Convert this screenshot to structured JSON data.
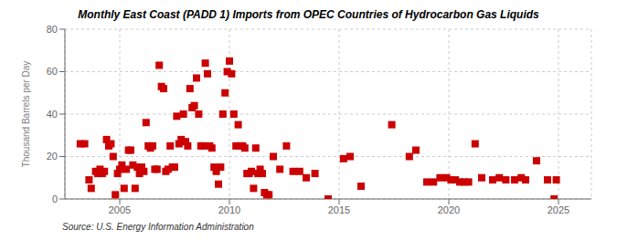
{
  "chart_data": {
    "type": "scatter",
    "title": "Monthly East Coast (PADD 1) Imports from OPEC Countries of Hydrocarbon Gas Liquids",
    "ylabel": "Thousand Barrels per Day",
    "annotations": [
      "Source: U.S. Energy Information Administration"
    ],
    "color": "#cc0000",
    "marker": "square",
    "grid": true,
    "xlim": [
      2002.5,
      2026.5
    ],
    "ylim": [
      0,
      80
    ],
    "xticks": [
      2005,
      2010,
      2015,
      2020,
      2025
    ],
    "yticks": [
      0,
      20,
      40,
      60,
      80
    ],
    "x": [
      2003.2,
      2003.4,
      2003.6,
      2003.7,
      2003.9,
      2004.0,
      2004.1,
      2004.2,
      2004.3,
      2004.4,
      2004.5,
      2004.6,
      2004.7,
      2004.8,
      2004.9,
      2005.0,
      2005.1,
      2005.2,
      2005.3,
      2005.4,
      2005.5,
      2005.6,
      2005.7,
      2005.8,
      2005.9,
      2006.0,
      2006.1,
      2006.2,
      2006.3,
      2006.4,
      2006.5,
      2006.6,
      2006.7,
      2006.8,
      2006.9,
      2007.0,
      2007.1,
      2007.2,
      2007.3,
      2007.4,
      2007.5,
      2007.6,
      2007.7,
      2007.8,
      2007.9,
      2008.0,
      2008.1,
      2008.2,
      2008.3,
      2008.4,
      2008.5,
      2008.6,
      2008.7,
      2008.8,
      2008.9,
      2009.0,
      2009.1,
      2009.2,
      2009.3,
      2009.4,
      2009.5,
      2009.6,
      2009.7,
      2009.8,
      2009.9,
      2010.0,
      2010.1,
      2010.2,
      2010.3,
      2010.4,
      2010.5,
      2010.6,
      2010.7,
      2010.8,
      2010.9,
      2011.0,
      2011.1,
      2011.2,
      2011.3,
      2011.4,
      2011.5,
      2011.6,
      2011.7,
      2011.8,
      2012.0,
      2012.3,
      2012.6,
      2012.9,
      2013.2,
      2013.5,
      2013.9,
      2014.5,
      2015.2,
      2015.5,
      2016.0,
      2017.4,
      2018.2,
      2018.5,
      2019.0,
      2019.3,
      2019.6,
      2019.9,
      2020.1,
      2020.3,
      2020.5,
      2020.7,
      2020.9,
      2021.2,
      2021.5,
      2022.0,
      2022.3,
      2022.6,
      2023.0,
      2023.3,
      2023.5,
      2024.0,
      2024.5,
      2024.8,
      2024.9
    ],
    "values": [
      26,
      26,
      9,
      5,
      13,
      12,
      14,
      12,
      13,
      28,
      25,
      26,
      20,
      2,
      12,
      14,
      16,
      5,
      14,
      23,
      23,
      16,
      5,
      15,
      12,
      15,
      13,
      36,
      25,
      24,
      25,
      14,
      14,
      63,
      53,
      52,
      13,
      14,
      25,
      15,
      15,
      39,
      26,
      28,
      40,
      27,
      25,
      52,
      43,
      44,
      57,
      40,
      25,
      25,
      64,
      59,
      25,
      24,
      15,
      13,
      7,
      15,
      40,
      50,
      60,
      65,
      59,
      40,
      25,
      35,
      25,
      25,
      24,
      12,
      12,
      13,
      5,
      24,
      12,
      14,
      12,
      3,
      2,
      2,
      20,
      14,
      25,
      13,
      13,
      10,
      12,
      0,
      19,
      20,
      6,
      35,
      20,
      23,
      8,
      8,
      10,
      10,
      9,
      9,
      8,
      8,
      8,
      26,
      10,
      9,
      10,
      9,
      9,
      10,
      9,
      18,
      9,
      0,
      9
    ]
  }
}
